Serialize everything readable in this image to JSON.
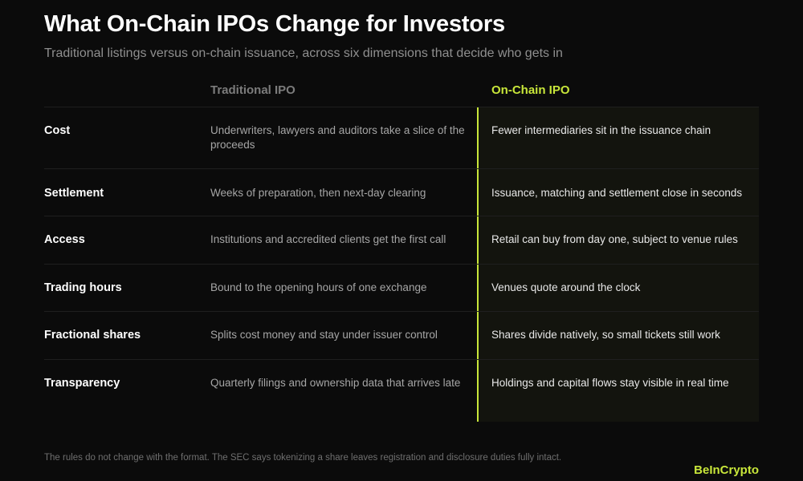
{
  "header": {
    "title": "What On-Chain IPOs Change for Investors",
    "subtitle": "Traditional listings versus on-chain issuance, across six dimensions that decide who gets in"
  },
  "table": {
    "columns": [
      "",
      "Traditional IPO",
      "On-Chain IPO"
    ],
    "highlight_color": "#c8e63a",
    "rows": [
      {
        "dimension": "Cost",
        "traditional": "Underwriters, lawyers and auditors take a slice of the proceeds",
        "onchain": "Fewer intermediaries sit in the issuance chain"
      },
      {
        "dimension": "Settlement",
        "traditional": "Weeks of preparation, then next-day clearing",
        "onchain": "Issuance, matching and settlement close in seconds"
      },
      {
        "dimension": "Access",
        "traditional": "Institutions and accredited clients get the first call",
        "onchain": "Retail can buy from day one, subject to venue rules"
      },
      {
        "dimension": "Trading hours",
        "traditional": "Bound to the opening hours of one exchange",
        "onchain": "Venues quote around the clock"
      },
      {
        "dimension": "Fractional shares",
        "traditional": "Splits cost money and stay under issuer control",
        "onchain": "Shares divide natively, so small tickets still work"
      },
      {
        "dimension": "Transparency",
        "traditional": "Quarterly filings and ownership data that arrives late",
        "onchain": "Holdings and capital flows stay visible in real time"
      }
    ]
  },
  "footer": {
    "note": "The rules do not change with the format. The SEC says tokenizing a share leaves registration and disclosure duties fully intact.",
    "brand": "BeInCrypto"
  }
}
